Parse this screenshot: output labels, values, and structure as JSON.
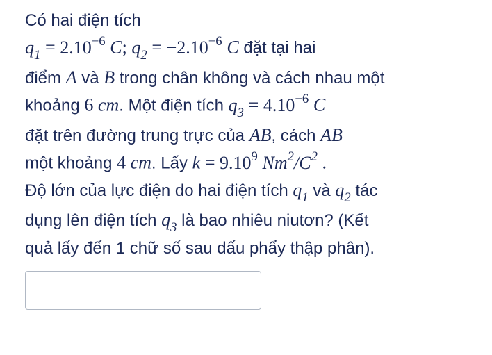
{
  "problem": {
    "intro": "Có hai điện tích",
    "q1_label": "q",
    "q1_sub": "1",
    "eq": " = ",
    "q1_val": "2.10",
    "q1_exp": "−6",
    "unit_C": " C",
    "semicolon": "; ",
    "q2_label": "q",
    "q2_sub": "2",
    "q2_val": "−2.10",
    "q2_exp": "−6",
    "tail1": " đặt tại hai",
    "line2a": "điểm ",
    "A": "A",
    "line2b": " và ",
    "B": "B",
    "line2c": " trong chân không và cách nhau một",
    "line3a": "khoảng ",
    "d_ab": "6 ",
    "cm": "cm",
    "line3b": ". Một điện tích ",
    "q3_label": "q",
    "q3_sub": "3",
    "q3_val": "4.10",
    "q3_exp": "−6",
    "line4a": "đặt trên đường trung trực của ",
    "AB": "AB",
    "line4b": ", cách ",
    "line5a": "một khoảng ",
    "d_c": "4 ",
    "line5b": ". Lấy ",
    "k": "k",
    "k_val": "9.10",
    "k_exp": "9",
    "k_unit1": " Nm",
    "k_unit_sup2a": "2",
    "k_slash": "/",
    "k_unit2": "C",
    "k_unit_sup2b": "2",
    "period": " .",
    "line6": "Độ lớn của lực điện do hai điện tích ",
    "and": " và ",
    "tac": " tác",
    "line7a": "dụng lên điện tích ",
    "line7b": " là bao nhiêu niutơn? (Kết",
    "line8": "quả lấy đến 1 chữ số sau dấu phẩy thập phân)."
  },
  "input": {
    "placeholder": ""
  },
  "style": {
    "text_color": "#1d2a57",
    "background": "#ffffff",
    "input_border": "#b0b8c4",
    "font_size_body": 24,
    "font_size_math": 26
  }
}
